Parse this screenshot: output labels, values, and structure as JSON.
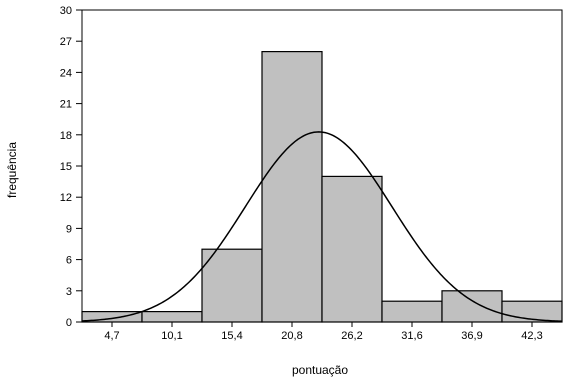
{
  "chart_data": {
    "type": "bar",
    "title": "",
    "xlabel": "pontuação",
    "ylabel": "frequência",
    "categories": [
      "4,7",
      "10,1",
      "15,4",
      "20,8",
      "26,2",
      "31,6",
      "36,9",
      "42,3"
    ],
    "values": [
      1,
      1,
      7,
      26,
      14,
      2,
      3,
      2
    ],
    "y_ticks": [
      "0",
      "3",
      "6",
      "9",
      "12",
      "15",
      "18",
      "21",
      "24",
      "27",
      "30"
    ],
    "ylim": [
      0,
      30
    ],
    "normal_curve": {
      "mean": 23.3,
      "sd": 6.6,
      "n": 56,
      "bin_width": 5.4
    },
    "bar_color": "#c0c0c0",
    "line_color": "#000000",
    "grid": false
  }
}
